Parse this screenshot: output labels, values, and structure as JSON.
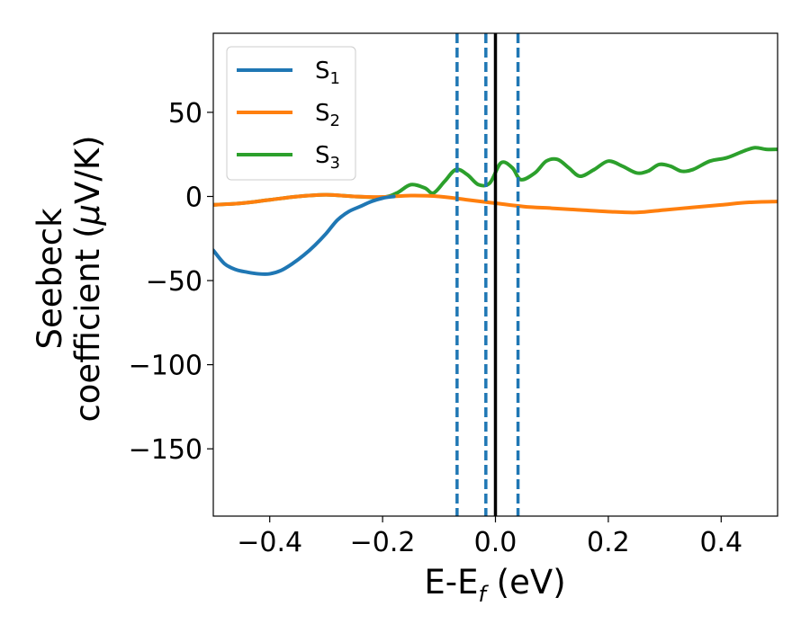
{
  "chart_data": {
    "type": "line",
    "title": "",
    "xlabel": "E-E$_f$ (eV)",
    "xlabel_main": "E-E",
    "xlabel_sub": "f",
    "xlabel_tail": " (eV)",
    "ylabel_line1": "Seebeck",
    "ylabel_line2_pre": "coefficient  (",
    "ylabel_line2_mu": "μ",
    "ylabel_line2_post": "V/K)",
    "xlim": [
      -0.5,
      0.5
    ],
    "ylim": [
      -190,
      97
    ],
    "xticks": [
      -0.4,
      -0.2,
      0.0,
      0.2,
      0.4
    ],
    "xtick_labels": [
      "−0.4",
      "−0.2",
      "0.0",
      "0.2",
      "0.4"
    ],
    "yticks": [
      50,
      0,
      -50,
      -100,
      -150
    ],
    "ytick_labels": [
      "50",
      "0",
      "−50",
      "−100",
      "−150"
    ],
    "grid": false,
    "legend_position": "top-left",
    "vlines": [
      {
        "x": -0.068,
        "style": "dashed",
        "color": "#1f77b4"
      },
      {
        "x": -0.017,
        "style": "dashed",
        "color": "#1f77b4"
      },
      {
        "x": 0.04,
        "style": "dashed",
        "color": "#1f77b4"
      },
      {
        "x": 0.0,
        "style": "solid",
        "color": "#000000"
      }
    ],
    "series": [
      {
        "name": "S1",
        "label_main": "S",
        "label_sub": "1",
        "color": "#1f77b4",
        "x": [
          -0.5,
          -0.48,
          -0.46,
          -0.44,
          -0.42,
          -0.4,
          -0.38,
          -0.36,
          -0.34,
          -0.32,
          -0.3,
          -0.28,
          -0.26,
          -0.24,
          -0.22,
          -0.2,
          -0.18
        ],
        "y": [
          -32,
          -40,
          -43.5,
          -45,
          -46,
          -46,
          -44,
          -40,
          -35,
          -29,
          -22,
          -14,
          -9,
          -6,
          -3,
          -1,
          0
        ]
      },
      {
        "name": "S2",
        "label_main": "S",
        "label_sub": "2",
        "color": "#ff7f0e",
        "x": [
          -0.5,
          -0.45,
          -0.4,
          -0.35,
          -0.3,
          -0.25,
          -0.2,
          -0.15,
          -0.1,
          -0.05,
          0.0,
          0.05,
          0.1,
          0.15,
          0.2,
          0.25,
          0.3,
          0.35,
          0.4,
          0.45,
          0.5
        ],
        "y": [
          -5,
          -4,
          -2,
          0,
          1,
          0,
          -0.3,
          0.5,
          0,
          -2,
          -4,
          -6,
          -7,
          -8,
          -9,
          -9.5,
          -8,
          -6.5,
          -5,
          -3.5,
          -3
        ]
      },
      {
        "name": "S3",
        "label_main": "S",
        "label_sub": "3",
        "color": "#2ca02c",
        "x": [
          -0.5,
          -0.45,
          -0.4,
          -0.35,
          -0.3,
          -0.25,
          -0.2,
          -0.175,
          -0.15,
          -0.125,
          -0.11,
          -0.09,
          -0.07,
          -0.05,
          -0.03,
          -0.01,
          0.01,
          0.03,
          0.045,
          0.07,
          0.09,
          0.11,
          0.13,
          0.15,
          0.175,
          0.2,
          0.225,
          0.25,
          0.27,
          0.29,
          0.31,
          0.33,
          0.35,
          0.38,
          0.41,
          0.44,
          0.46,
          0.48,
          0.5
        ],
        "y": [
          -5,
          -4,
          -2,
          0,
          1,
          0,
          -0.5,
          2,
          7,
          5,
          2,
          9,
          16,
          13,
          7,
          8,
          20,
          17,
          10,
          14,
          21,
          22,
          17,
          12,
          16,
          21,
          18,
          14,
          15,
          19,
          18,
          15,
          16,
          21,
          23,
          27,
          29,
          28,
          28
        ]
      }
    ]
  }
}
